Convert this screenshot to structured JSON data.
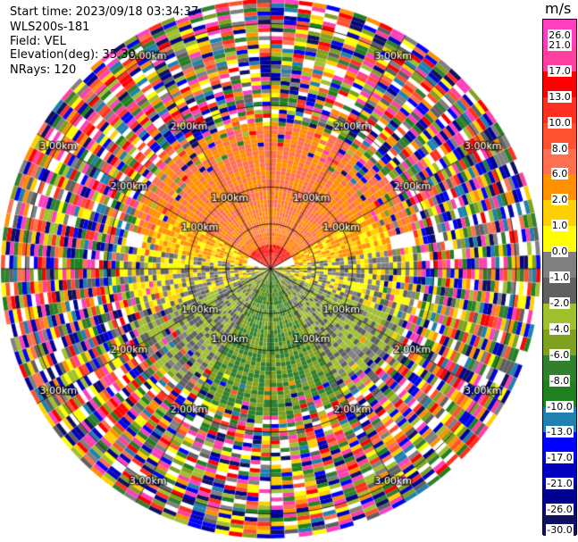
{
  "header": {
    "start_time": "Start time: 2023/09/18 03:34:37",
    "instrument": "WLS200s-181",
    "field": "Field: VEL",
    "elevation": "Elevation(deg): 35.30",
    "nrays": "NRays: 120"
  },
  "colorbar": {
    "unit": "m/s",
    "ticks": [
      "26.0",
      "21.0",
      "17.0",
      "13.0",
      "10.0",
      "8.0",
      "6.0",
      "2.0",
      "1.0",
      "0.0",
      "-1.0",
      "-2.0",
      "-4.0",
      "-6.0",
      "-8.0",
      "-10.0",
      "-13.0",
      "-17.0",
      "-21.0",
      "-26.0",
      "-30.0"
    ],
    "colors": [
      "#ff3fbf",
      "#ff40a0",
      "#ff0000",
      "#ff3020",
      "#ff5030",
      "#ff7050",
      "#ff9000",
      "#ffd000",
      "#ffff00",
      "#808080",
      "#606060",
      "#a0c030",
      "#80a020",
      "#308030",
      "#208020",
      "#2080b0",
      "#0000ff",
      "#0000c0",
      "#000090",
      "#101060"
    ]
  },
  "chart_data": {
    "type": "ppi",
    "title": "Start time: 2023/09/18 03:34:37",
    "field": "VEL",
    "unit": "m/s",
    "elevation_deg": 35.3,
    "n_rays": 120,
    "max_range_km": 3.3,
    "range_rings_km": [
      1.0,
      2.0,
      3.0
    ],
    "ring_labels": [
      "1.00km",
      "2.00km",
      "3.00km"
    ],
    "velocity_min": -30.0,
    "velocity_max": 26.0,
    "sectors": [
      {
        "azimuth_from_deg": -60,
        "azimuth_to_deg": 60,
        "range_from_km": 0.0,
        "range_to_km": 0.3,
        "value": 13.0
      },
      {
        "azimuth_from_deg": -75,
        "azimuth_to_deg": 75,
        "range_from_km": 0.3,
        "range_to_km": 1.8,
        "value": 6.0
      },
      {
        "azimuth_from_deg": 60,
        "azimuth_to_deg": 80,
        "range_from_km": 0.3,
        "range_to_km": 1.5,
        "value": 2.0
      },
      {
        "azimuth_from_deg": -80,
        "azimuth_to_deg": -60,
        "range_from_km": 0.3,
        "range_to_km": 1.6,
        "value": 2.0
      },
      {
        "azimuth_from_deg": 80,
        "azimuth_to_deg": 110,
        "range_from_km": 0.0,
        "range_to_km": 1.8,
        "value": 0.0
      },
      {
        "azimuth_from_deg": 250,
        "azimuth_to_deg": 280,
        "range_from_km": 0.0,
        "range_to_km": 1.8,
        "value": 0.0
      },
      {
        "azimuth_from_deg": 110,
        "azimuth_to_deg": 150,
        "range_from_km": 0.0,
        "range_to_km": 1.8,
        "value": -2.0
      },
      {
        "azimuth_from_deg": 210,
        "azimuth_to_deg": 250,
        "range_from_km": 0.0,
        "range_to_km": 1.8,
        "value": -2.0
      },
      {
        "azimuth_from_deg": 150,
        "azimuth_to_deg": 210,
        "range_from_km": 0.0,
        "range_to_km": 1.8,
        "value": -6.0
      },
      {
        "azimuth_from_deg": 0,
        "azimuth_to_deg": 360,
        "range_from_km": 1.8,
        "range_to_km": 3.3,
        "value": "noise"
      }
    ]
  }
}
